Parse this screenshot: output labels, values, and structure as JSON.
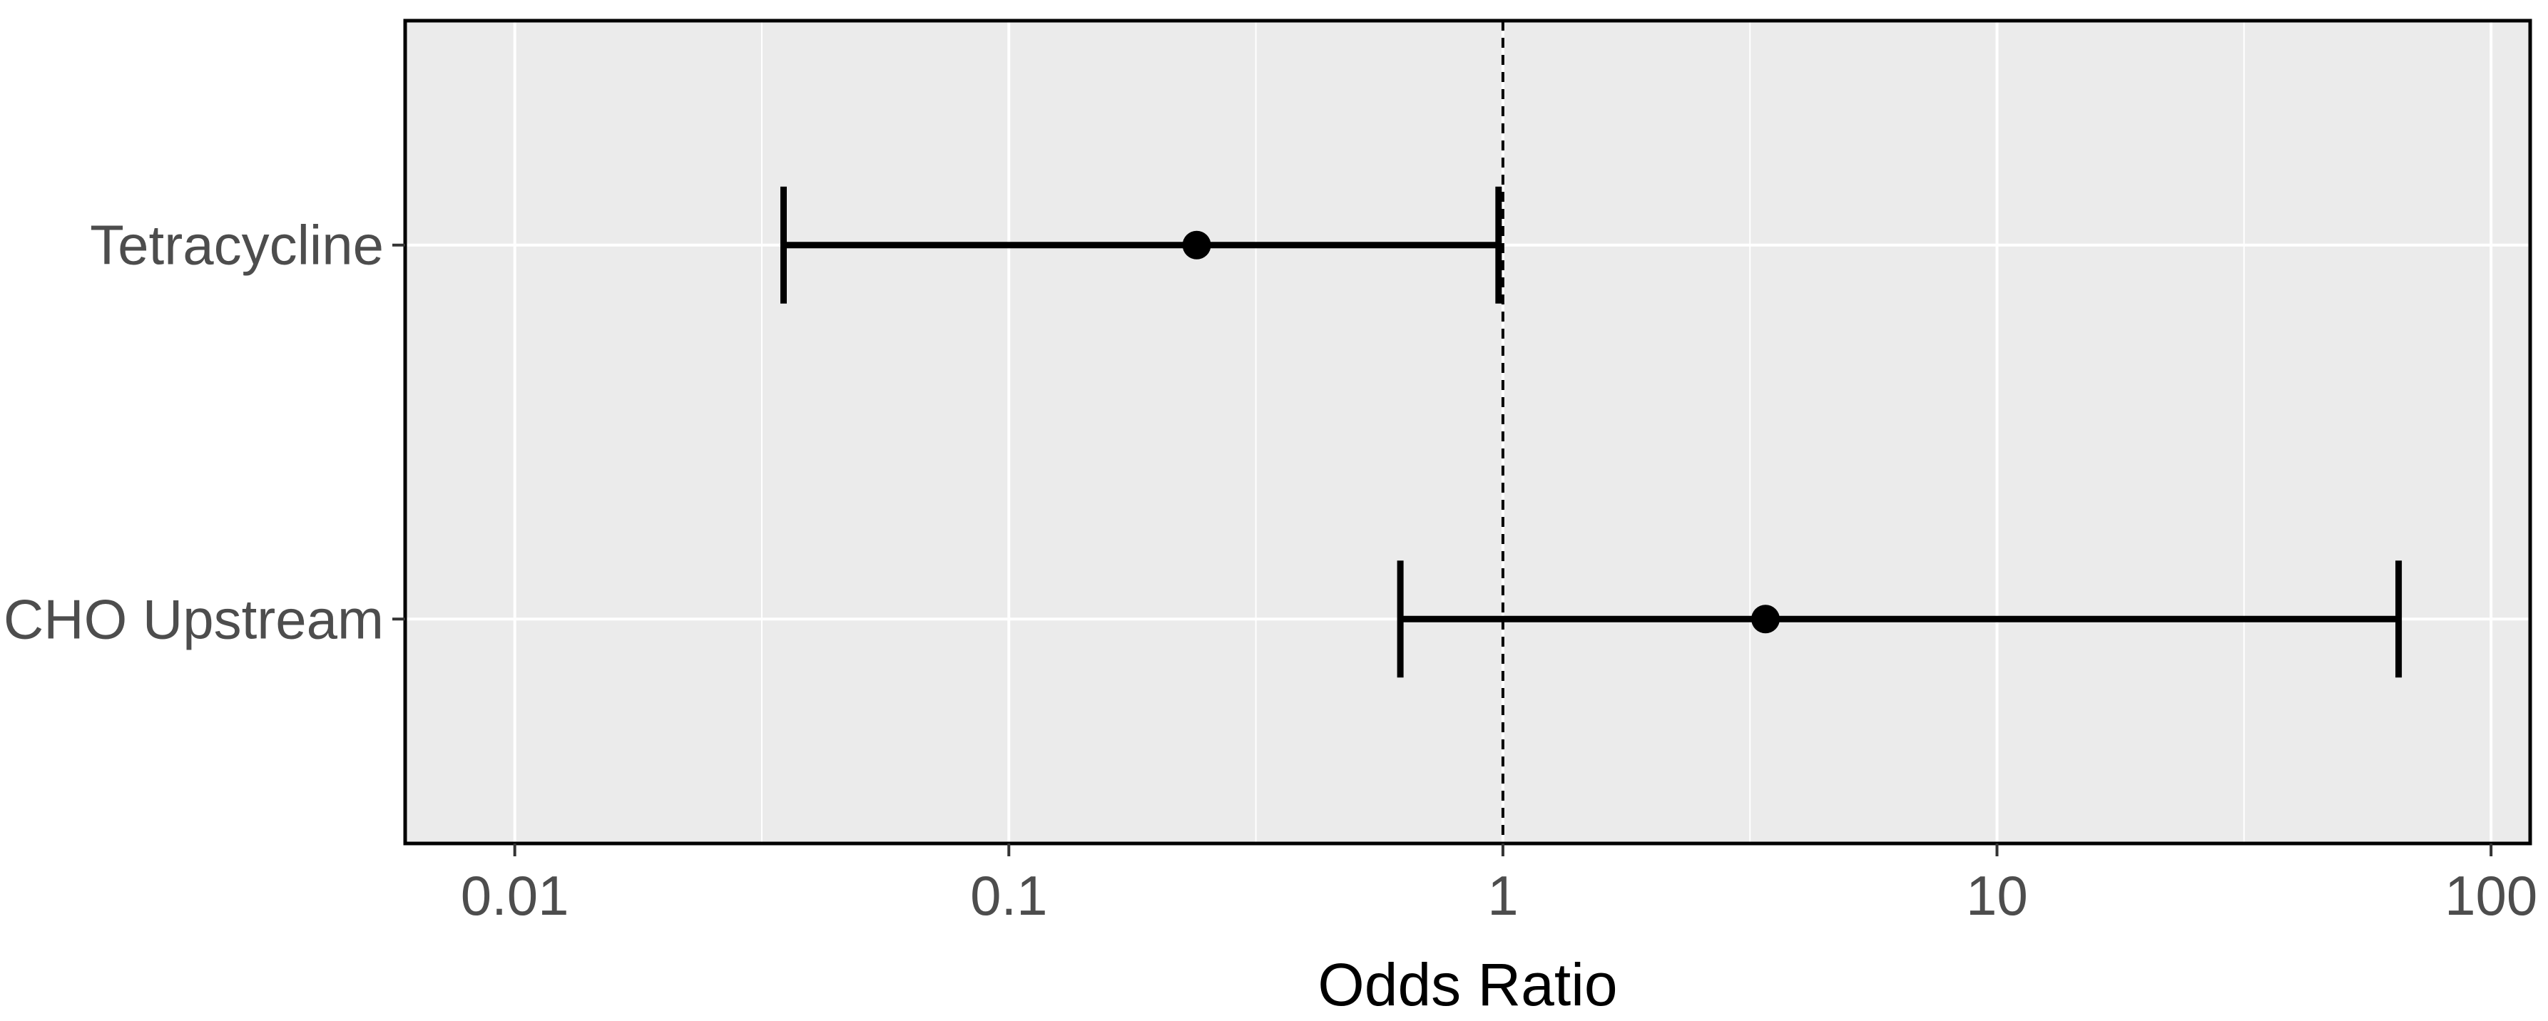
{
  "chart_data": {
    "type": "forest",
    "xlabel": "Odds Ratio",
    "ylabel": "",
    "x_scale": "log10",
    "xlim": [
      0.006,
      120
    ],
    "x_ticks": [
      0.01,
      0.1,
      1,
      10,
      100
    ],
    "x_tick_labels": [
      "0.01",
      "0.1",
      "1",
      "10",
      "100"
    ],
    "reference_line": 1,
    "grid": true,
    "categories": [
      "Tetracycline",
      "CHO Upstream"
    ],
    "estimates": [
      0.24,
      3.4
    ],
    "ci_lower": [
      0.035,
      0.62
    ],
    "ci_upper": [
      0.98,
      65
    ],
    "colors": {
      "panel": "#ebebeb",
      "grid": "#ffffff",
      "marks": "#000000",
      "tick_text": "#4d4d4d"
    }
  }
}
